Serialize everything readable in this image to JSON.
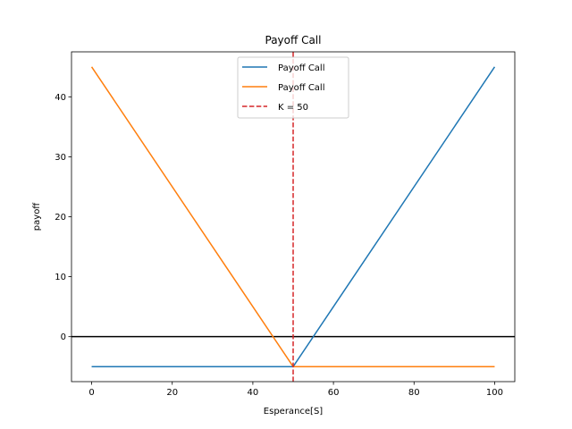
{
  "chart_data": {
    "type": "line",
    "title": "Payoff Call",
    "xlabel": "Esperance[S]",
    "ylabel": "payoff",
    "xlim": [
      -5,
      105
    ],
    "ylim": [
      -7.5,
      47.5
    ],
    "xticks": [
      0,
      20,
      40,
      60,
      80,
      100
    ],
    "yticks": [
      0,
      10,
      20,
      30,
      40
    ],
    "grid": false,
    "legend_placement": "upper center",
    "series": [
      {
        "name": "Payoff Call",
        "color": "#1f77b4",
        "x": [
          0,
          50,
          100
        ],
        "y": [
          -5,
          -5,
          45
        ]
      },
      {
        "name": "Payoff Call",
        "color": "#ff7f0e",
        "x": [
          0,
          50,
          100
        ],
        "y": [
          45,
          -5,
          -5
        ]
      }
    ],
    "reference_lines": [
      {
        "orientation": "vertical",
        "x": 50,
        "name": "K = 50",
        "color": "#d62728",
        "style": "dashed"
      },
      {
        "orientation": "horizontal",
        "y": 0,
        "color": "#000000",
        "style": "solid"
      }
    ]
  }
}
